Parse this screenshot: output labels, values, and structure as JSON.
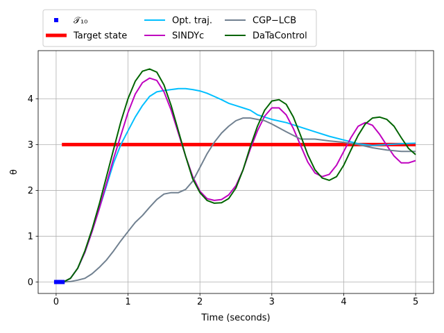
{
  "chart_data": {
    "type": "line",
    "xlabel": "Time (seconds)",
    "ylabel": "θ",
    "xlim": [
      -0.25,
      5.25
    ],
    "ylim": [
      -0.25,
      5.05
    ],
    "xticks": [
      0,
      1,
      2,
      3,
      4,
      5
    ],
    "yticks": [
      0,
      1,
      2,
      3,
      4
    ],
    "grid": true,
    "legend_position": "top",
    "series": [
      {
        "name": "𝒯₁₀",
        "kind": "markers",
        "color": "#0000ff",
        "x": [
          0.0,
          0.01,
          0.02,
          0.03,
          0.04,
          0.05,
          0.06,
          0.07,
          0.08,
          0.09
        ],
        "y": [
          0,
          0,
          0,
          0,
          0,
          0,
          0,
          0,
          0,
          0
        ]
      },
      {
        "name": "Target state",
        "kind": "thick-line",
        "color": "#ff0000",
        "x": [
          0.08,
          5.0
        ],
        "y": [
          3.0,
          3.0
        ]
      },
      {
        "name": "Opt. traj.",
        "color": "#00bfff",
        "x": [
          0.1,
          0.2,
          0.3,
          0.4,
          0.5,
          0.6,
          0.7,
          0.8,
          0.9,
          1.0,
          1.1,
          1.2,
          1.3,
          1.4,
          1.5,
          1.6,
          1.7,
          1.8,
          1.9,
          2.0,
          2.1,
          2.2,
          2.3,
          2.4,
          2.5,
          2.6,
          2.7,
          2.8,
          2.9,
          3.0,
          3.2,
          3.4,
          3.6,
          3.8,
          4.0,
          4.2,
          4.4,
          4.6,
          4.8,
          5.0
        ],
        "y": [
          0.0,
          0.08,
          0.3,
          0.65,
          1.1,
          1.6,
          2.1,
          2.6,
          3.0,
          3.3,
          3.6,
          3.85,
          4.05,
          4.15,
          4.18,
          4.2,
          4.22,
          4.22,
          4.2,
          4.17,
          4.12,
          4.05,
          3.98,
          3.9,
          3.85,
          3.8,
          3.75,
          3.65,
          3.6,
          3.55,
          3.48,
          3.38,
          3.28,
          3.18,
          3.1,
          3.02,
          2.98,
          3.0,
          3.02,
          3.03
        ]
      },
      {
        "name": "SINDYc",
        "color": "#bf00bf",
        "x": [
          0.1,
          0.2,
          0.3,
          0.4,
          0.5,
          0.6,
          0.7,
          0.8,
          0.9,
          1.0,
          1.1,
          1.2,
          1.3,
          1.4,
          1.5,
          1.6,
          1.7,
          1.8,
          1.9,
          2.0,
          2.1,
          2.2,
          2.3,
          2.4,
          2.5,
          2.6,
          2.7,
          2.8,
          2.9,
          3.0,
          3.1,
          3.2,
          3.3,
          3.4,
          3.5,
          3.6,
          3.7,
          3.8,
          3.9,
          4.0,
          4.1,
          4.2,
          4.3,
          4.4,
          4.5,
          4.6,
          4.7,
          4.8,
          4.9,
          5.0
        ],
        "y": [
          0.0,
          0.08,
          0.3,
          0.65,
          1.1,
          1.6,
          2.15,
          2.7,
          3.2,
          3.7,
          4.1,
          4.35,
          4.45,
          4.4,
          4.15,
          3.75,
          3.25,
          2.75,
          2.3,
          1.98,
          1.82,
          1.78,
          1.8,
          1.9,
          2.1,
          2.45,
          2.9,
          3.3,
          3.62,
          3.8,
          3.8,
          3.65,
          3.35,
          2.98,
          2.62,
          2.38,
          2.3,
          2.35,
          2.55,
          2.85,
          3.15,
          3.4,
          3.48,
          3.42,
          3.22,
          2.98,
          2.75,
          2.6,
          2.6,
          2.65
        ]
      },
      {
        "name": "CGP−LCB",
        "color": "#708090",
        "x": [
          0.1,
          0.2,
          0.3,
          0.4,
          0.5,
          0.6,
          0.7,
          0.8,
          0.9,
          1.0,
          1.1,
          1.2,
          1.3,
          1.4,
          1.5,
          1.6,
          1.7,
          1.8,
          1.9,
          2.0,
          2.1,
          2.2,
          2.3,
          2.4,
          2.5,
          2.6,
          2.7,
          2.8,
          2.9,
          3.0,
          3.2,
          3.4,
          3.6,
          3.8,
          4.0,
          4.2,
          4.4,
          4.6,
          4.8,
          5.0
        ],
        "y": [
          0.0,
          0.01,
          0.04,
          0.08,
          0.18,
          0.32,
          0.48,
          0.68,
          0.9,
          1.1,
          1.3,
          1.45,
          1.63,
          1.8,
          1.92,
          1.95,
          1.95,
          2.02,
          2.2,
          2.5,
          2.8,
          3.05,
          3.25,
          3.4,
          3.52,
          3.58,
          3.58,
          3.55,
          3.52,
          3.45,
          3.28,
          3.12,
          3.12,
          3.08,
          3.05,
          3.0,
          2.93,
          2.88,
          2.85,
          2.85
        ]
      },
      {
        "name": "DaTaControl",
        "color": "#006400",
        "x": [
          0.1,
          0.2,
          0.3,
          0.4,
          0.5,
          0.6,
          0.7,
          0.8,
          0.9,
          1.0,
          1.1,
          1.2,
          1.3,
          1.4,
          1.5,
          1.6,
          1.7,
          1.8,
          1.9,
          2.0,
          2.1,
          2.2,
          2.3,
          2.4,
          2.5,
          2.6,
          2.7,
          2.8,
          2.9,
          3.0,
          3.1,
          3.2,
          3.3,
          3.4,
          3.5,
          3.6,
          3.7,
          3.8,
          3.9,
          4.0,
          4.1,
          4.2,
          4.3,
          4.4,
          4.5,
          4.6,
          4.7,
          4.8,
          4.9,
          5.0
        ],
        "y": [
          0.0,
          0.08,
          0.3,
          0.68,
          1.15,
          1.7,
          2.3,
          2.9,
          3.5,
          4.0,
          4.38,
          4.6,
          4.65,
          4.58,
          4.3,
          3.85,
          3.3,
          2.75,
          2.25,
          1.95,
          1.78,
          1.72,
          1.73,
          1.82,
          2.05,
          2.45,
          2.95,
          3.4,
          3.75,
          3.95,
          3.98,
          3.88,
          3.6,
          3.2,
          2.78,
          2.45,
          2.27,
          2.22,
          2.3,
          2.55,
          2.88,
          3.2,
          3.45,
          3.58,
          3.6,
          3.55,
          3.4,
          3.15,
          2.92,
          2.78
        ]
      }
    ]
  }
}
